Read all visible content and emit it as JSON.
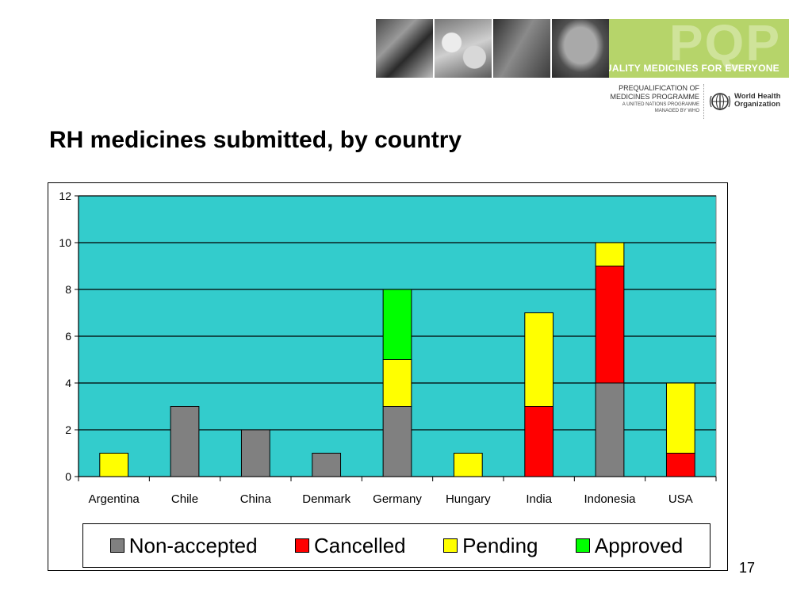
{
  "banner": {
    "pqp_letters": "PQP",
    "tagline": "QUALITY MEDICINES FOR EVERYONE"
  },
  "programme": {
    "line1": "PREQUALIFICATION OF",
    "line2": "MEDICINES PROGRAMME",
    "line3": "A UNITED NATIONS PROGRAMME",
    "line4": "MANAGED BY WHO"
  },
  "who": {
    "line1": "World Health",
    "line2": "Organization"
  },
  "slide": {
    "title": "RH medicines submitted, by country",
    "page_number": "17"
  },
  "colors": {
    "plot_bg": "#33cccc",
    "non_accepted": "#808080",
    "cancelled": "#ff0000",
    "pending": "#ffff00",
    "approved": "#00ff00"
  },
  "chart_data": {
    "type": "bar",
    "stacked": true,
    "title": "",
    "xlabel": "",
    "ylabel": "",
    "ylim": [
      0,
      12
    ],
    "yticks": [
      "0",
      "2",
      "4",
      "6",
      "8",
      "10",
      "12"
    ],
    "grid": true,
    "legend_position": "bottom",
    "categories": [
      "Argentina",
      "Chile",
      "China",
      "Denmark",
      "Germany",
      "Hungary",
      "India",
      "Indonesia",
      "USA"
    ],
    "series": [
      {
        "name": "Non-accepted",
        "values": [
          0,
          3,
          2,
          1,
          3,
          0,
          0,
          4,
          0
        ],
        "color": "#808080"
      },
      {
        "name": "Cancelled",
        "values": [
          0,
          0,
          0,
          0,
          0,
          0,
          3,
          5,
          1
        ],
        "color": "#ff0000"
      },
      {
        "name": "Pending",
        "values": [
          1,
          0,
          0,
          0,
          2,
          1,
          4,
          1,
          3
        ],
        "color": "#ffff00"
      },
      {
        "name": "Approved",
        "values": [
          0,
          0,
          0,
          0,
          3,
          0,
          0,
          0,
          0
        ],
        "color": "#00ff00"
      }
    ]
  }
}
